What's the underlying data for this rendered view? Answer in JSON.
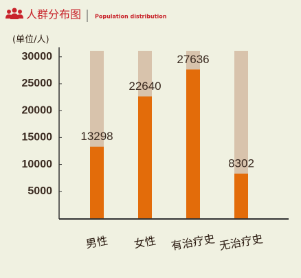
{
  "chart_data": {
    "type": "bar",
    "title": "人群分布图",
    "subtitle": "Population distribution",
    "y_label": "(单位/人)",
    "categories": [
      "男性",
      "女性",
      "有治疗史",
      "无治疗史"
    ],
    "values": [
      13298,
      22640,
      27636,
      8302
    ],
    "color": "#e36c0a",
    "track_color": "#d8c3ac",
    "ylim": [
      0,
      31500
    ],
    "yticks": [
      5000,
      10000,
      15000,
      20000,
      25000,
      30000
    ]
  }
}
